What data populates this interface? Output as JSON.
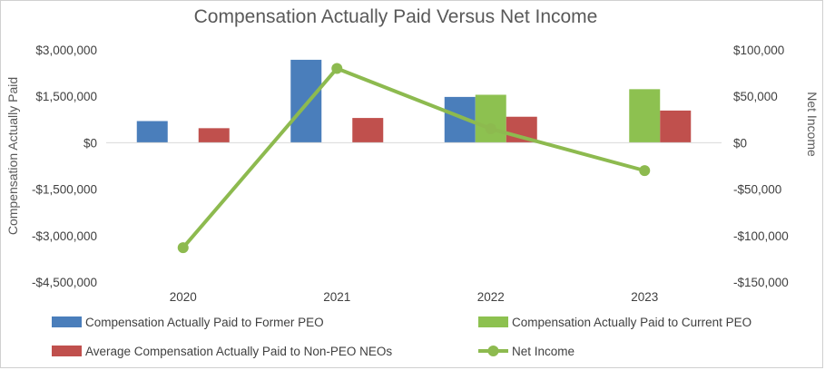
{
  "chart_data": {
    "type": "bar",
    "title": "Compensation Actually Paid Versus Net Income",
    "categories": [
      "2020",
      "2021",
      "2022",
      "2023"
    ],
    "ylabel": "Compensation Actually Paid",
    "y2label": "Net Income",
    "ylim": [
      -4500000,
      3000000
    ],
    "y2lim": [
      -150000,
      100000
    ],
    "yticks": [
      3000000,
      1500000,
      0,
      -1500000,
      -3000000,
      -4500000
    ],
    "ytick_labels": [
      "$3,000,000",
      "$1,500,000",
      "$0",
      "-$1,500,000",
      "-$3,000,000",
      "-$4,500,000"
    ],
    "y2ticks": [
      100000,
      50000,
      0,
      -50000,
      -100000,
      -150000
    ],
    "y2tick_labels": [
      "$100,000",
      "$50,000",
      "$0",
      "-$50,000",
      "-$100,000",
      "-$150,000"
    ],
    "gridlines": false,
    "legend_position": "bottom",
    "series": [
      {
        "name": "Compensation Actually Paid to Former PEO",
        "kind": "bar",
        "axis": "left",
        "color": "#4a7ebb",
        "values": [
          700000,
          2680000,
          1480000,
          null
        ]
      },
      {
        "name": "Compensation Actually Paid to Current PEO",
        "kind": "bar",
        "axis": "left",
        "color": "#8dc150",
        "values": [
          null,
          null,
          1550000,
          1730000
        ]
      },
      {
        "name": "Average Compensation Actually Paid to Non-PEO NEOs",
        "kind": "bar",
        "axis": "left",
        "color": "#c0504d",
        "values": [
          470000,
          800000,
          840000,
          1040000
        ]
      },
      {
        "name": "Net Income",
        "kind": "line",
        "axis": "right",
        "color": "#8dba4f",
        "values": [
          -113000,
          80000,
          15000,
          -30000
        ]
      }
    ]
  }
}
